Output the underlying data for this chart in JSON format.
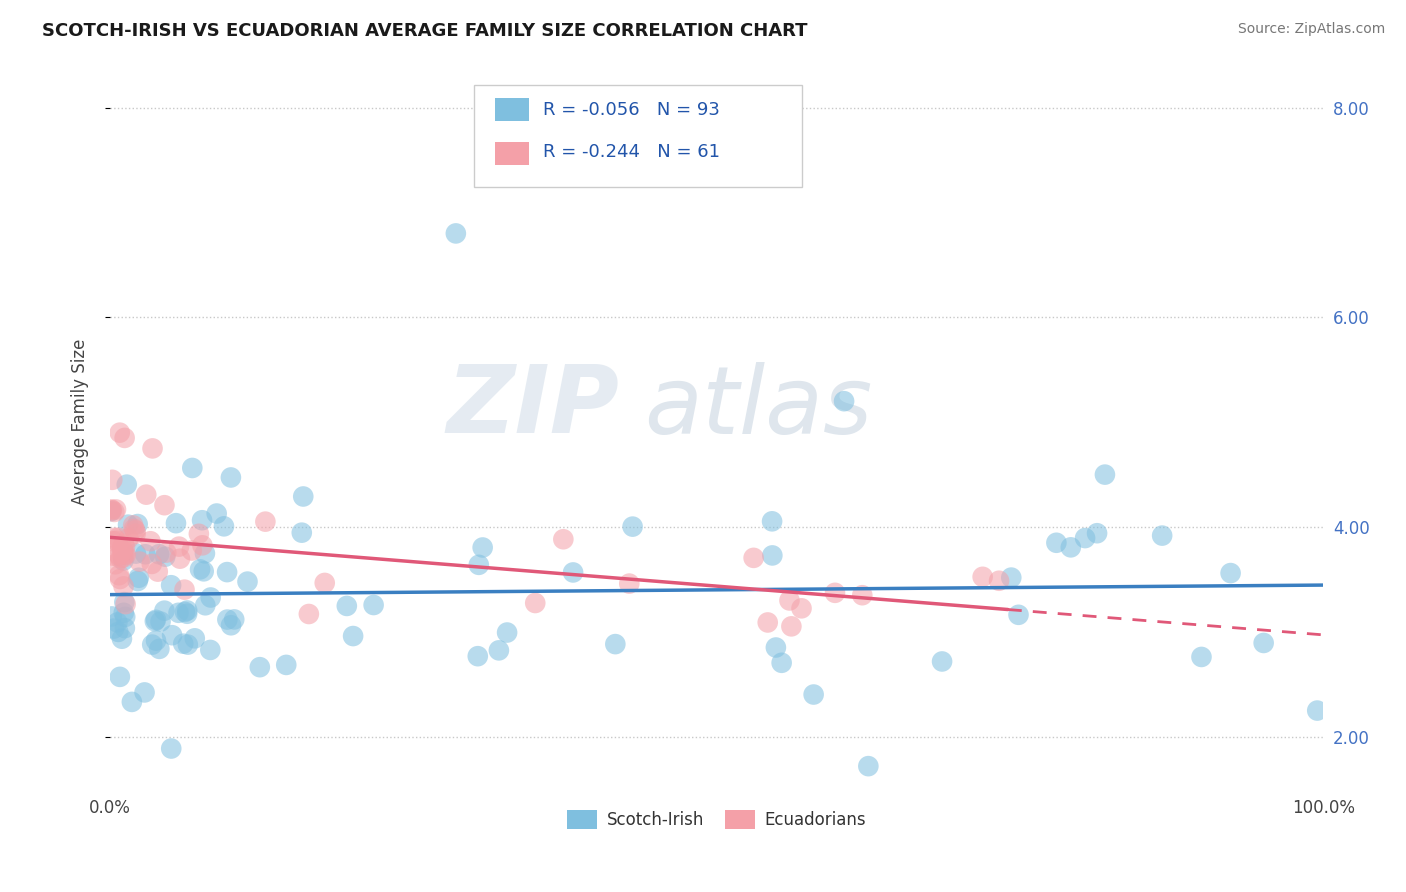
{
  "title": "SCOTCH-IRISH VS ECUADORIAN AVERAGE FAMILY SIZE CORRELATION CHART",
  "source": "Source: ZipAtlas.com",
  "ylabel": "Average Family Size",
  "legend_label_1": "Scotch-Irish",
  "legend_label_2": "Ecuadorians",
  "color_scotch": "#7fbfdf",
  "color_ecuadorian": "#f4a0a8",
  "xlim": [
    0.0,
    1.0
  ],
  "ylim": [
    1.5,
    8.5
  ],
  "watermark_zip": "ZIP",
  "watermark_atlas": "atlas",
  "scotch_seed": 12345,
  "ecu_seed": 67890
}
